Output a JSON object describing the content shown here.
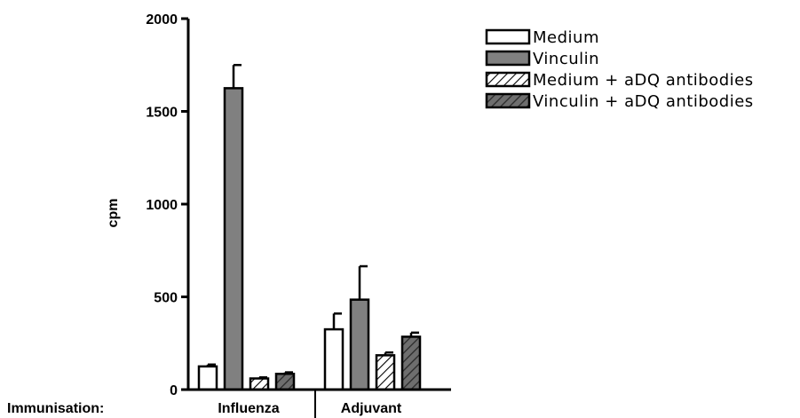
{
  "chart_data": {
    "type": "bar",
    "xlabel": "Immunisation:",
    "ylabel": "cpm",
    "ylim": [
      0,
      2000
    ],
    "yticks": [
      0,
      500,
      1000,
      1500,
      2000
    ],
    "categories": [
      "Influenza",
      "Adjuvant"
    ],
    "series": [
      {
        "name": "Medium",
        "values": [
          125,
          325
        ],
        "errors": [
          10,
          85
        ],
        "fill": "#ffffff",
        "pattern": "none"
      },
      {
        "name": "Vinculin",
        "values": [
          1625,
          485
        ],
        "errors": [
          125,
          180
        ],
        "fill": "#808080",
        "pattern": "none"
      },
      {
        "name": "Medium + aDQ antibodies",
        "values": [
          60,
          185
        ],
        "errors": [
          6,
          15
        ],
        "fill": "#ffffff",
        "pattern": "hatch"
      },
      {
        "name": "Vinculin + aDQ antibodies",
        "values": [
          85,
          285
        ],
        "errors": [
          8,
          22
        ],
        "fill": "#6e6e6e",
        "pattern": "hatch"
      }
    ],
    "legend_position": "top-right",
    "grid": false
  }
}
